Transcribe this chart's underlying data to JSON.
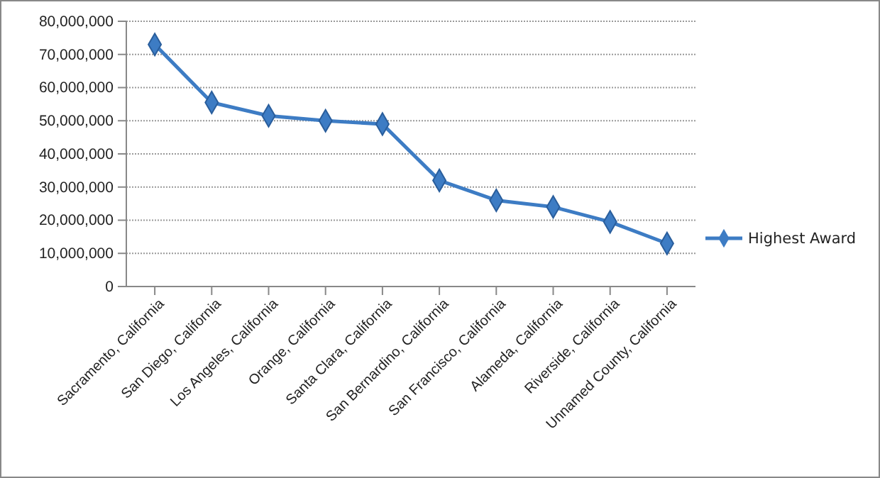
{
  "chart_data": {
    "type": "line",
    "categories": [
      "Sacramento, California",
      "San Diego, California",
      "Los Angeles, California",
      "Orange, California",
      "Santa Clara, California",
      "San Bernardino, California",
      "San Francisco, California",
      "Alameda, California",
      "Riverside, California",
      "Unnamed County, California"
    ],
    "series": [
      {
        "name": "Highest Award",
        "color": "#3d7cc4",
        "values": [
          73000000,
          55500000,
          51500000,
          50000000,
          49000000,
          32000000,
          26000000,
          24000000,
          19500000,
          13000000
        ]
      }
    ],
    "ylim": [
      0,
      80000000
    ],
    "yticks": [
      {
        "value": 0,
        "label": "0"
      },
      {
        "value": 10000000,
        "label": "10,000,000"
      },
      {
        "value": 20000000,
        "label": "20,000,000"
      },
      {
        "value": 30000000,
        "label": "30,000,000"
      },
      {
        "value": 40000000,
        "label": "40,000,000"
      },
      {
        "value": 50000000,
        "label": "50,000,000"
      },
      {
        "value": 60000000,
        "label": "60,000,000"
      },
      {
        "value": 70000000,
        "label": "70,000,000"
      },
      {
        "value": 80000000,
        "label": "80,000,000"
      }
    ],
    "grid": "y",
    "legend": "right",
    "marker": "diamond",
    "line_style": "solid"
  }
}
